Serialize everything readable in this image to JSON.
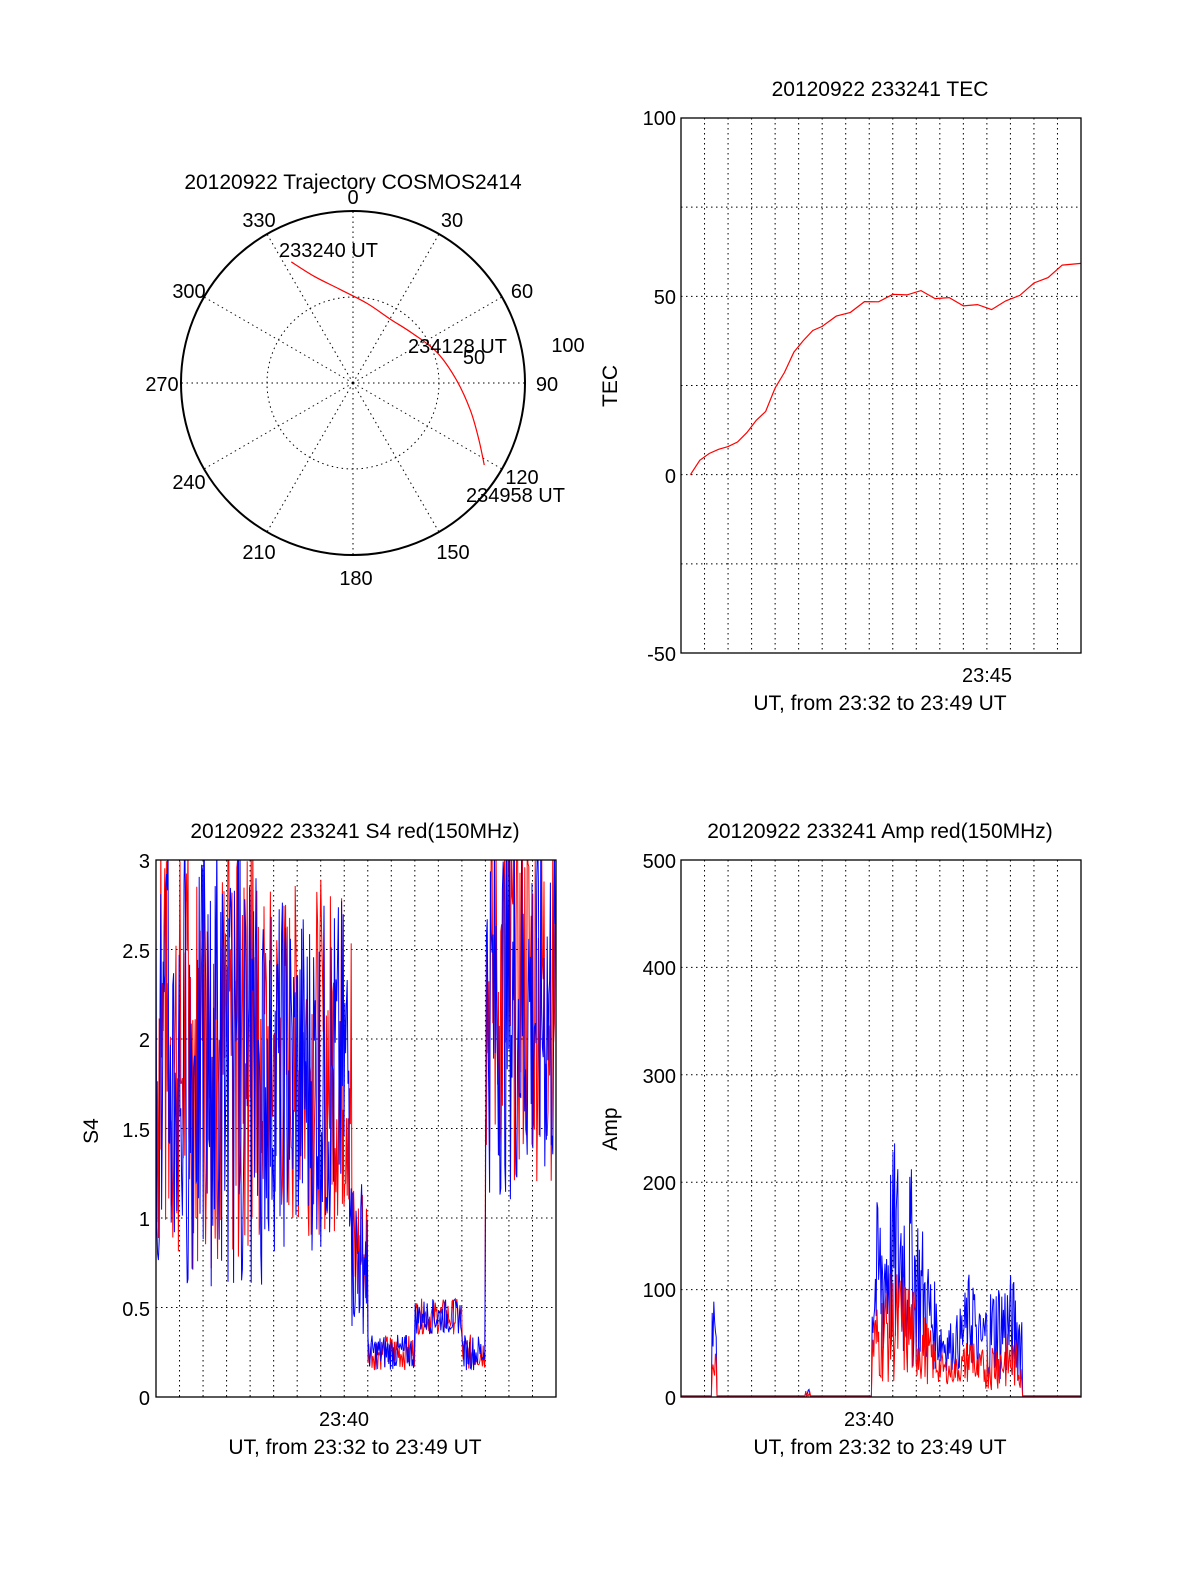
{
  "chart_data": [
    {
      "type": "polar",
      "title": "20120922 Trajectory COSMOS2414",
      "azimuth_labels": [
        "0",
        "30",
        "60",
        "90",
        "120",
        "150",
        "180",
        "210",
        "240",
        "270",
        "300",
        "330"
      ],
      "radius_labels": [
        "50",
        "100"
      ],
      "trajectory_labels": {
        "start": "233240 UT",
        "middle": "234128 UT",
        "end": "234958 UT"
      },
      "trajectory": [
        {
          "az": 333,
          "r": 79
        },
        {
          "az": 340,
          "r": 66
        },
        {
          "az": 352,
          "r": 55
        },
        {
          "az": 10,
          "r": 47
        },
        {
          "az": 30,
          "r": 43
        },
        {
          "az": 50,
          "r": 45
        },
        {
          "az": 70,
          "r": 52
        },
        {
          "az": 88,
          "r": 60
        },
        {
          "az": 103,
          "r": 70
        },
        {
          "az": 114,
          "r": 80
        },
        {
          "az": 122,
          "r": 90
        }
      ],
      "colors": {
        "trajectory": "#ff0000"
      }
    },
    {
      "type": "line",
      "title": "20120922 233241 TEC",
      "ylabel": "TEC",
      "xlabel": "UT, from 23:32 to 23:49 UT",
      "ylim": [
        -50,
        100
      ],
      "yticks": [
        "100",
        "50",
        "0",
        "-50"
      ],
      "xtick_label": "23:45",
      "x_range_min": [
        0,
        17
      ],
      "series": [
        {
          "color": "#ff0000",
          "points": [
            [
              0.4,
              0
            ],
            [
              0.8,
              4
            ],
            [
              1.2,
              6
            ],
            [
              1.6,
              7
            ],
            [
              2.0,
              8
            ],
            [
              2.4,
              9
            ],
            [
              2.8,
              12
            ],
            [
              3.2,
              15
            ],
            [
              3.6,
              18
            ],
            [
              4.0,
              24
            ],
            [
              4.4,
              29
            ],
            [
              4.8,
              34
            ],
            [
              5.2,
              38
            ],
            [
              5.6,
              40
            ],
            [
              6.0,
              42
            ],
            [
              6.6,
              44
            ],
            [
              7.2,
              46
            ],
            [
              7.8,
              48
            ],
            [
              8.4,
              49
            ],
            [
              9.0,
              50
            ],
            [
              9.6,
              51
            ],
            [
              10.2,
              51
            ],
            [
              10.8,
              50
            ],
            [
              11.4,
              49
            ],
            [
              12.0,
              48
            ],
            [
              12.6,
              47
            ],
            [
              13.2,
              47
            ],
            [
              13.8,
              48
            ],
            [
              14.4,
              51
            ],
            [
              15.0,
              53
            ],
            [
              15.6,
              56
            ],
            [
              16.2,
              58
            ],
            [
              17.0,
              60
            ]
          ]
        }
      ]
    },
    {
      "type": "line",
      "title": "20120922 233241 S4 red(150MHz)",
      "ylabel": "S4",
      "xlabel": "UT, from 23:32 to 23:49 UT",
      "ylim": [
        0,
        3
      ],
      "yticks": [
        "3",
        "2.5",
        "2",
        "1.5",
        "1",
        "0.5",
        "0"
      ],
      "xtick_label": "23:40",
      "x_range_min": [
        0,
        17
      ],
      "colors": {
        "red": "#ff0000",
        "blue": "#0000ff"
      }
    },
    {
      "type": "line",
      "title": "20120922 233241 Amp red(150MHz)",
      "ylabel": "Amp",
      "xlabel": "UT, from 23:32 to 23:49 UT",
      "ylim": [
        0,
        500
      ],
      "yticks": [
        "500",
        "400",
        "300",
        "200",
        "100",
        "0"
      ],
      "xtick_label": "23:40",
      "x_range_min": [
        0,
        17
      ],
      "colors": {
        "red": "#ff0000",
        "blue": "#0000ff"
      }
    }
  ]
}
